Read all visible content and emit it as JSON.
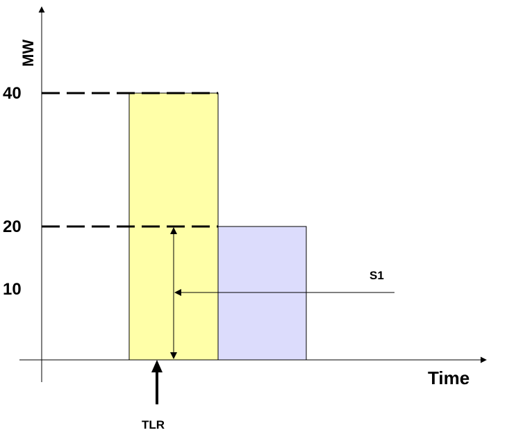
{
  "diagram": {
    "y_axis_label": "MW",
    "x_axis_label": "Time",
    "y_ticks": [
      {
        "label": "40",
        "value": 40
      },
      {
        "label": "20",
        "value": 20
      },
      {
        "label": "10",
        "value": 10
      }
    ],
    "blocks": [
      {
        "name": "yellow-block",
        "mw": 40,
        "fill": "#ffffa8"
      },
      {
        "name": "blue-block",
        "mw": 20,
        "fill": "#dcdcfc"
      }
    ],
    "s1_label": "S1",
    "tlr_label": "TLR",
    "colors": {
      "line": "#000000",
      "yellow_fill": "#ffffa8",
      "blue_fill": "#dcdcfc"
    }
  }
}
